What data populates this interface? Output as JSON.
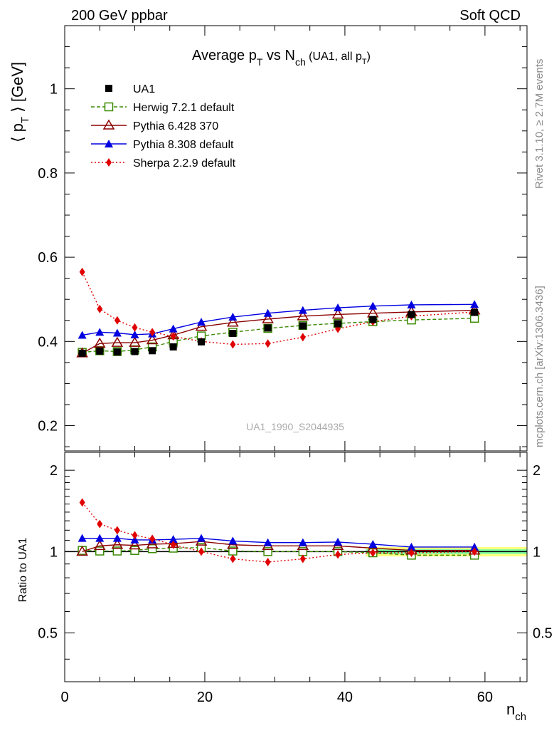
{
  "header": {
    "left": "200 GeV ppbar",
    "right": "Soft QCD"
  },
  "side_labels": {
    "rivet": "Rivet 3.1.10, ≥ 2.7M events",
    "mcplots": "mcplots.cern.ch [arXiv:1306.3436]"
  },
  "watermark": "UA1_1990_S2044935",
  "colors": {
    "data": "#000000",
    "herwig": "#3a8a00",
    "pythia6": "#8b0000",
    "pythia8": "#0000e0",
    "sherpa": "#e00000",
    "band_inner": "#7fffa0",
    "band_outer": "#ffff80"
  },
  "chart_data": [
    {
      "type": "scatter",
      "panel": "main",
      "title": "Average p_T vs N_ch (UA1, all p_T)",
      "title_parts": {
        "a": "Average p",
        "a_sub": "T",
        "b": " vs N",
        "b_sub": "ch",
        "c": " (UA1, all p",
        "c_sub": "T",
        "d": ")"
      },
      "ylabel": "⟨ p_T ⟩ [GeV]",
      "ylabel_parts": {
        "a": "⟨ p",
        "a_sub": "T",
        "b": " ⟩ [GeV]"
      },
      "xlim": [
        0,
        66
      ],
      "ylim": [
        0.14,
        1.15
      ],
      "yticks": [
        0.2,
        0.4,
        0.6,
        0.8,
        1.0
      ],
      "ytick_labels": [
        "0.2",
        "0.4",
        "0.6",
        "0.8",
        "1"
      ],
      "legend_position": "top-left",
      "series": [
        {
          "name": "UA1",
          "style": "data",
          "x": [
            2.5,
            5,
            7.5,
            10,
            12.5,
            15.5,
            19.5
          ],
          "values": [
            0.372,
            0.377,
            0.375,
            0.376,
            0.378,
            0.387,
            0.399
          ],
          "x2": [
            24,
            29,
            34,
            39,
            44,
            49.5,
            58.5
          ],
          "values2": [
            0.419,
            0.432,
            0.437,
            0.442,
            0.452,
            0.464,
            0.469
          ]
        },
        {
          "name": "Herwig 7.2.1 default",
          "style": "herwig",
          "x": [
            2.5,
            5,
            7.5,
            10,
            12.5,
            15.5,
            19.5,
            24,
            29,
            34,
            39,
            44,
            49.5,
            58.5
          ],
          "values": [
            0.374,
            0.378,
            0.376,
            0.38,
            0.387,
            0.4,
            0.413,
            0.422,
            0.431,
            0.438,
            0.443,
            0.447,
            0.451,
            0.455
          ]
        },
        {
          "name": "Pythia 6.428 370",
          "style": "pythia6",
          "x": [
            2.5,
            5,
            7.5,
            10,
            12.5,
            15.5,
            19.5,
            24,
            29,
            34,
            39,
            44,
            49.5,
            58.5
          ],
          "values": [
            0.372,
            0.395,
            0.397,
            0.397,
            0.403,
            0.415,
            0.435,
            0.445,
            0.453,
            0.46,
            0.464,
            0.467,
            0.47,
            0.474
          ]
        },
        {
          "name": "Pythia 8.308 default",
          "style": "pythia8",
          "x": [
            2.5,
            5,
            7.5,
            10,
            12.5,
            15.5,
            19.5,
            24,
            29,
            34,
            39,
            44,
            49.5,
            58.5
          ],
          "values": [
            0.415,
            0.422,
            0.42,
            0.416,
            0.418,
            0.43,
            0.446,
            0.458,
            0.467,
            0.474,
            0.48,
            0.484,
            0.487,
            0.488
          ]
        },
        {
          "name": "Sherpa 2.2.9 default",
          "style": "sherpa",
          "x": [
            2.5,
            5,
            7.5,
            10,
            12.5,
            15.5,
            19.5,
            24,
            29,
            34,
            39,
            44,
            49.5,
            58.5
          ],
          "values": [
            0.565,
            0.477,
            0.45,
            0.433,
            0.422,
            0.412,
            0.4,
            0.393,
            0.395,
            0.41,
            0.43,
            0.447,
            0.46,
            0.47
          ]
        }
      ]
    },
    {
      "type": "line",
      "panel": "ratio",
      "ylabel": "Ratio to UA1",
      "xlabel": "n_ch",
      "xlabel_parts": {
        "a": "n",
        "a_sub": "ch"
      },
      "xlim": [
        0,
        66
      ],
      "ylim": [
        0.33,
        2.33
      ],
      "log_scale_y": true,
      "yticks": [
        0.5,
        1,
        2
      ],
      "ytick_labels": [
        "0.5",
        "1",
        "2"
      ],
      "xticks": [
        0,
        20,
        40,
        60
      ],
      "xtick_labels": [
        "0",
        "20",
        "40",
        "60"
      ],
      "band": {
        "x_start": 43,
        "x_end": 66
      },
      "series": [
        {
          "name": "Herwig 7.2.1 default",
          "style": "herwig",
          "x": [
            2.5,
            5,
            7.5,
            10,
            12.5,
            15.5,
            19.5,
            24,
            29,
            34,
            39,
            44,
            49.5,
            58.5
          ],
          "values": [
            1.01,
            1.005,
            1.005,
            1.01,
            1.025,
            1.03,
            1.035,
            1.005,
            1.0,
            1.0,
            1.0,
            0.99,
            0.97,
            0.97
          ]
        },
        {
          "name": "Pythia 6.428 370",
          "style": "pythia6",
          "x": [
            2.5,
            5,
            7.5,
            10,
            12.5,
            15.5,
            19.5,
            24,
            29,
            34,
            39,
            44,
            49.5,
            58.5
          ],
          "values": [
            1.0,
            1.05,
            1.06,
            1.055,
            1.065,
            1.07,
            1.09,
            1.06,
            1.05,
            1.05,
            1.05,
            1.03,
            1.01,
            1.01
          ]
        },
        {
          "name": "Pythia 8.308 default",
          "style": "pythia8",
          "x": [
            2.5,
            5,
            7.5,
            10,
            12.5,
            15.5,
            19.5,
            24,
            29,
            34,
            39,
            44,
            49.5,
            58.5
          ],
          "values": [
            1.12,
            1.12,
            1.12,
            1.105,
            1.105,
            1.11,
            1.12,
            1.095,
            1.08,
            1.08,
            1.085,
            1.065,
            1.04,
            1.04
          ]
        },
        {
          "name": "Sherpa 2.2.9 default",
          "style": "sherpa",
          "x": [
            2.5,
            5,
            7.5,
            10,
            12.5,
            15.5,
            19.5,
            24,
            29,
            34,
            39,
            44,
            49.5,
            58.5
          ],
          "values": [
            1.52,
            1.265,
            1.2,
            1.15,
            1.115,
            1.06,
            1.0,
            0.94,
            0.915,
            0.94,
            0.975,
            0.99,
            0.99,
            1.0
          ]
        }
      ]
    }
  ]
}
